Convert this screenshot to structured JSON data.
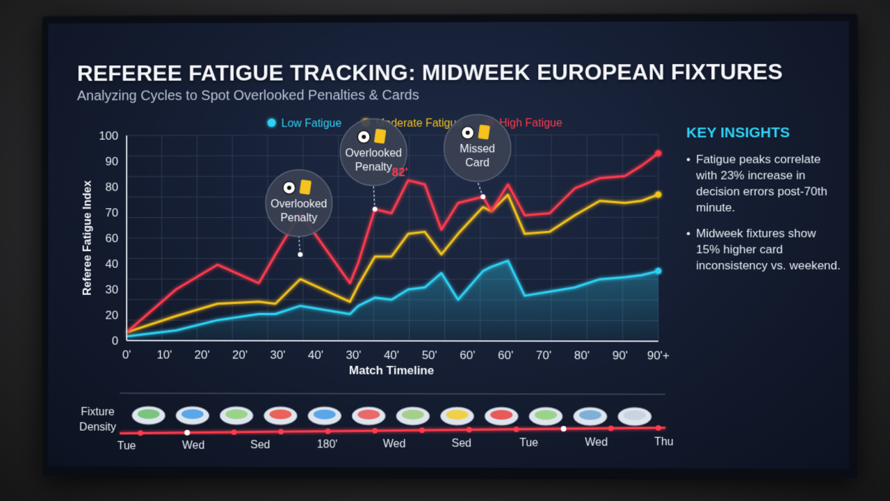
{
  "title": "REFEREE FATIGUE TRACKING: MIDWEEK EUROPEAN FIXTURES",
  "subtitle": "Analyzing Cycles to Spot Overlooked Penalties & Cards",
  "insights": {
    "heading": "KEY INSIGHTS",
    "items": [
      "Fatigue peaks correlate with 23% increase in decision errors post-70th minute.",
      "Midweek fixtures show 15% higher card inconsistency vs. weekend."
    ]
  },
  "chart_data": {
    "type": "line",
    "title": "REFEREE FATIGUE TRACKING: MIDWEEK EUROPEAN FIXTURES",
    "xlabel": "Match Timeline",
    "ylabel": "Referee Fatigue Index",
    "ylim": [
      0,
      100
    ],
    "yticks": [
      0,
      20,
      30,
      40,
      60,
      70,
      80,
      90,
      100
    ],
    "y_tick_labels": [
      "0",
      "20",
      "30",
      "40",
      "60",
      "70",
      "80",
      "90",
      "100"
    ],
    "x_tick_labels": [
      "0'",
      "10'",
      "20'",
      "20'",
      "30'",
      "40'",
      "30'",
      "40'",
      "50'",
      "60'",
      "60'",
      "70'",
      "80'",
      "90'",
      "90'+"
    ],
    "grid": true,
    "legend": "top",
    "x": [
      0,
      3,
      5.5,
      8,
      9,
      10.5,
      13.5,
      14,
      15,
      16,
      17,
      18,
      19,
      20,
      21.5,
      22,
      23,
      24,
      25.5,
      27,
      28.5,
      30,
      31,
      32
    ],
    "series": [
      {
        "name": "Low Fatigue",
        "color": "#2fd2f5",
        "values": [
          2,
          5,
          10,
          13,
          13,
          17,
          13,
          17,
          21,
          20,
          25,
          26,
          33,
          20,
          34,
          36,
          39,
          22,
          24,
          26,
          30,
          31,
          32,
          34
        ]
      },
      {
        "name": "Moderate Fatigue",
        "color": "#f5c21e",
        "values": [
          4,
          12,
          18,
          19,
          18,
          30,
          19,
          27,
          41,
          41,
          52,
          53,
          42,
          52,
          65,
          63,
          71,
          52,
          53,
          61,
          68,
          67,
          68,
          71
        ]
      },
      {
        "name": "High Fatigue",
        "color": "#ff3b4e",
        "values": [
          4,
          25,
          37,
          28,
          42,
          62,
          28,
          38,
          64,
          62,
          78,
          76,
          54,
          67,
          70,
          63,
          76,
          61,
          62,
          74,
          79,
          80,
          85,
          91
        ]
      }
    ],
    "annotations": [
      {
        "text": "Overlooked Penalty",
        "x": 10.5,
        "y": 42,
        "icons": [
          "ball-icon",
          "yellow-card-icon"
        ]
      },
      {
        "text": "Overlooked Penalty",
        "x": 15,
        "y": 64,
        "icons": [
          "ball-icon",
          "yellow-card-icon"
        ]
      },
      {
        "text": "Missed Card",
        "x": 21.5,
        "y": 70,
        "icons": [
          "ball-icon",
          "yellow-card-icon"
        ]
      },
      {
        "text": "82'",
        "x": 16.5,
        "y": 80,
        "color": "#ff3b4e"
      }
    ],
    "fixture_density": {
      "label": "Fixture Density",
      "days": [
        "Tue",
        "Wed",
        "Sed",
        "180'",
        "Wed",
        "Sed",
        "Tue",
        "Wed",
        "Thu"
      ],
      "stadium_count": 12
    }
  }
}
